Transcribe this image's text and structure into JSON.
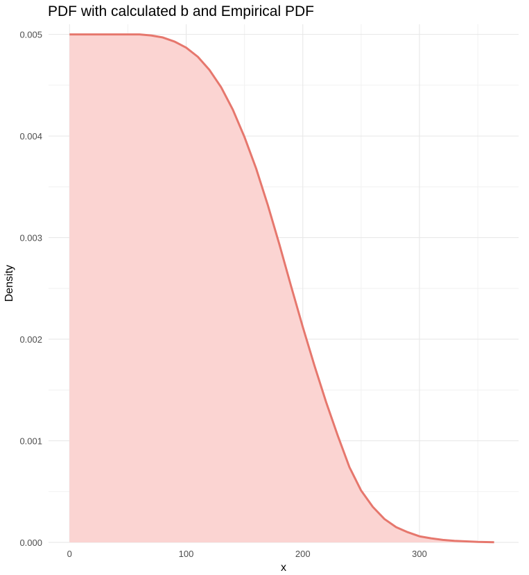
{
  "chart_data": {
    "type": "area",
    "title": "PDF with calculated b and Empirical PDF",
    "xlabel": "x",
    "ylabel": "Density",
    "xlim": [
      -18,
      385
    ],
    "ylim": [
      0,
      0.0051
    ],
    "x_ticks": [
      0,
      100,
      200,
      300
    ],
    "x_tick_labels": [
      "0",
      "100",
      "200",
      "300"
    ],
    "y_ticks": [
      0,
      0.001,
      0.002,
      0.003,
      0.004,
      0.005
    ],
    "y_tick_labels": [
      "0.000",
      "0.001",
      "0.002",
      "0.003",
      "0.004",
      "0.005"
    ],
    "grid": true,
    "legend": false,
    "fill_color": "#fbd4d2",
    "line_color": "#e6776d",
    "series": [
      {
        "x": [
          0,
          20,
          40,
          60,
          70,
          80,
          90,
          100,
          110,
          120,
          130,
          140,
          150,
          160,
          170,
          180,
          190,
          200,
          210,
          220,
          230,
          240,
          250,
          260,
          270,
          280,
          290,
          300,
          310,
          320,
          330,
          340,
          350,
          364
        ],
        "y": [
          0.005,
          0.005,
          0.005,
          0.005,
          0.00499,
          0.00497,
          0.00493,
          0.00487,
          0.00478,
          0.00465,
          0.00448,
          0.00426,
          0.00399,
          0.00368,
          0.00332,
          0.00293,
          0.00252,
          0.00212,
          0.00174,
          0.00138,
          0.00105,
          0.00074,
          0.00051,
          0.00035,
          0.00023,
          0.00015,
          0.0001,
          6e-05,
          4e-05,
          2.5e-05,
          1.5e-05,
          1e-05,
          5e-06,
          2e-06
        ]
      }
    ]
  }
}
